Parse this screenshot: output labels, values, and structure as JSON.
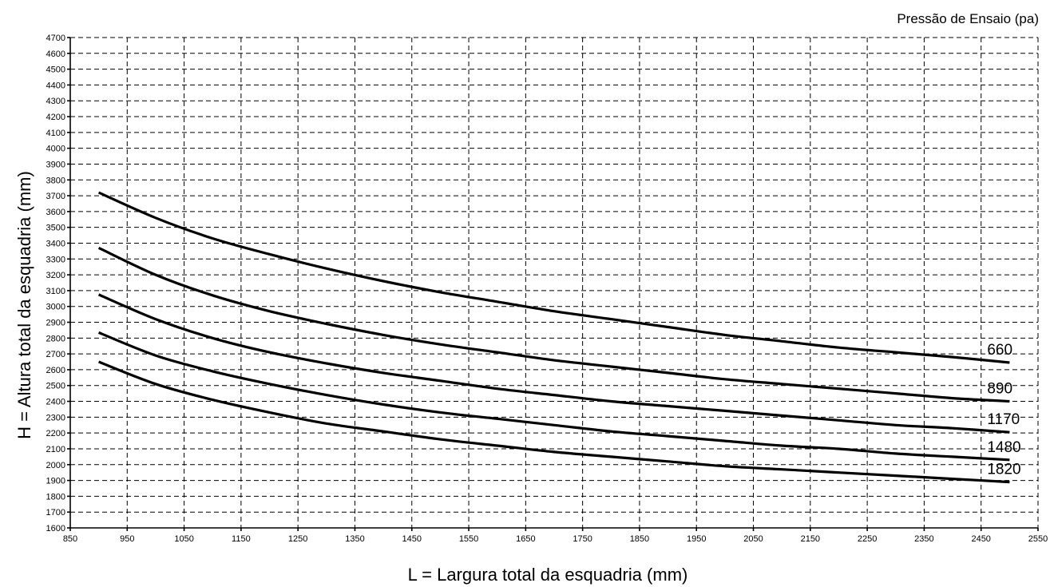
{
  "chart_data": {
    "type": "line",
    "title": "",
    "legend_title": "Pressão de Ensaio (pa)",
    "xlabel": "L = Largura total da esquadria (mm)",
    "ylabel": "H = Altura total da esquadria (mm)",
    "xlim": [
      850,
      2550
    ],
    "ylim": [
      1600,
      4700
    ],
    "x_ticks": [
      850,
      950,
      1050,
      1150,
      1250,
      1350,
      1450,
      1550,
      1650,
      1750,
      1850,
      1950,
      2050,
      2150,
      2250,
      2350,
      2450,
      2550
    ],
    "y_ticks": [
      1600,
      1700,
      1800,
      1900,
      2000,
      2100,
      2200,
      2300,
      2400,
      2500,
      2600,
      2700,
      2800,
      2900,
      3000,
      3100,
      3200,
      3300,
      3400,
      3500,
      3600,
      3700,
      3800,
      3900,
      4000,
      4100,
      4200,
      4300,
      4400,
      4500,
      4600,
      4700
    ],
    "grid": true,
    "legend_placement": "right, at line ends",
    "x": [
      900,
      1000,
      1100,
      1200,
      1300,
      1400,
      1500,
      1600,
      1700,
      1800,
      1900,
      2000,
      2100,
      2200,
      2300,
      2400,
      2500
    ],
    "series": [
      {
        "name": "660",
        "values": [
          3720,
          3560,
          3430,
          3330,
          3240,
          3160,
          3090,
          3030,
          2970,
          2920,
          2870,
          2820,
          2780,
          2740,
          2710,
          2680,
          2645
        ]
      },
      {
        "name": "890",
        "values": [
          3370,
          3200,
          3070,
          2970,
          2890,
          2820,
          2760,
          2710,
          2660,
          2620,
          2580,
          2540,
          2510,
          2480,
          2450,
          2420,
          2400
        ]
      },
      {
        "name": "1170",
        "values": [
          3075,
          2920,
          2800,
          2710,
          2640,
          2580,
          2530,
          2480,
          2440,
          2400,
          2370,
          2340,
          2310,
          2280,
          2250,
          2230,
          2205
        ]
      },
      {
        "name": "1480",
        "values": [
          2835,
          2690,
          2590,
          2510,
          2440,
          2380,
          2330,
          2290,
          2250,
          2210,
          2180,
          2150,
          2120,
          2100,
          2070,
          2050,
          2030
        ]
      },
      {
        "name": "1820",
        "values": [
          2650,
          2510,
          2410,
          2330,
          2260,
          2210,
          2160,
          2120,
          2080,
          2050,
          2020,
          1990,
          1970,
          1950,
          1930,
          1910,
          1890
        ]
      }
    ]
  }
}
